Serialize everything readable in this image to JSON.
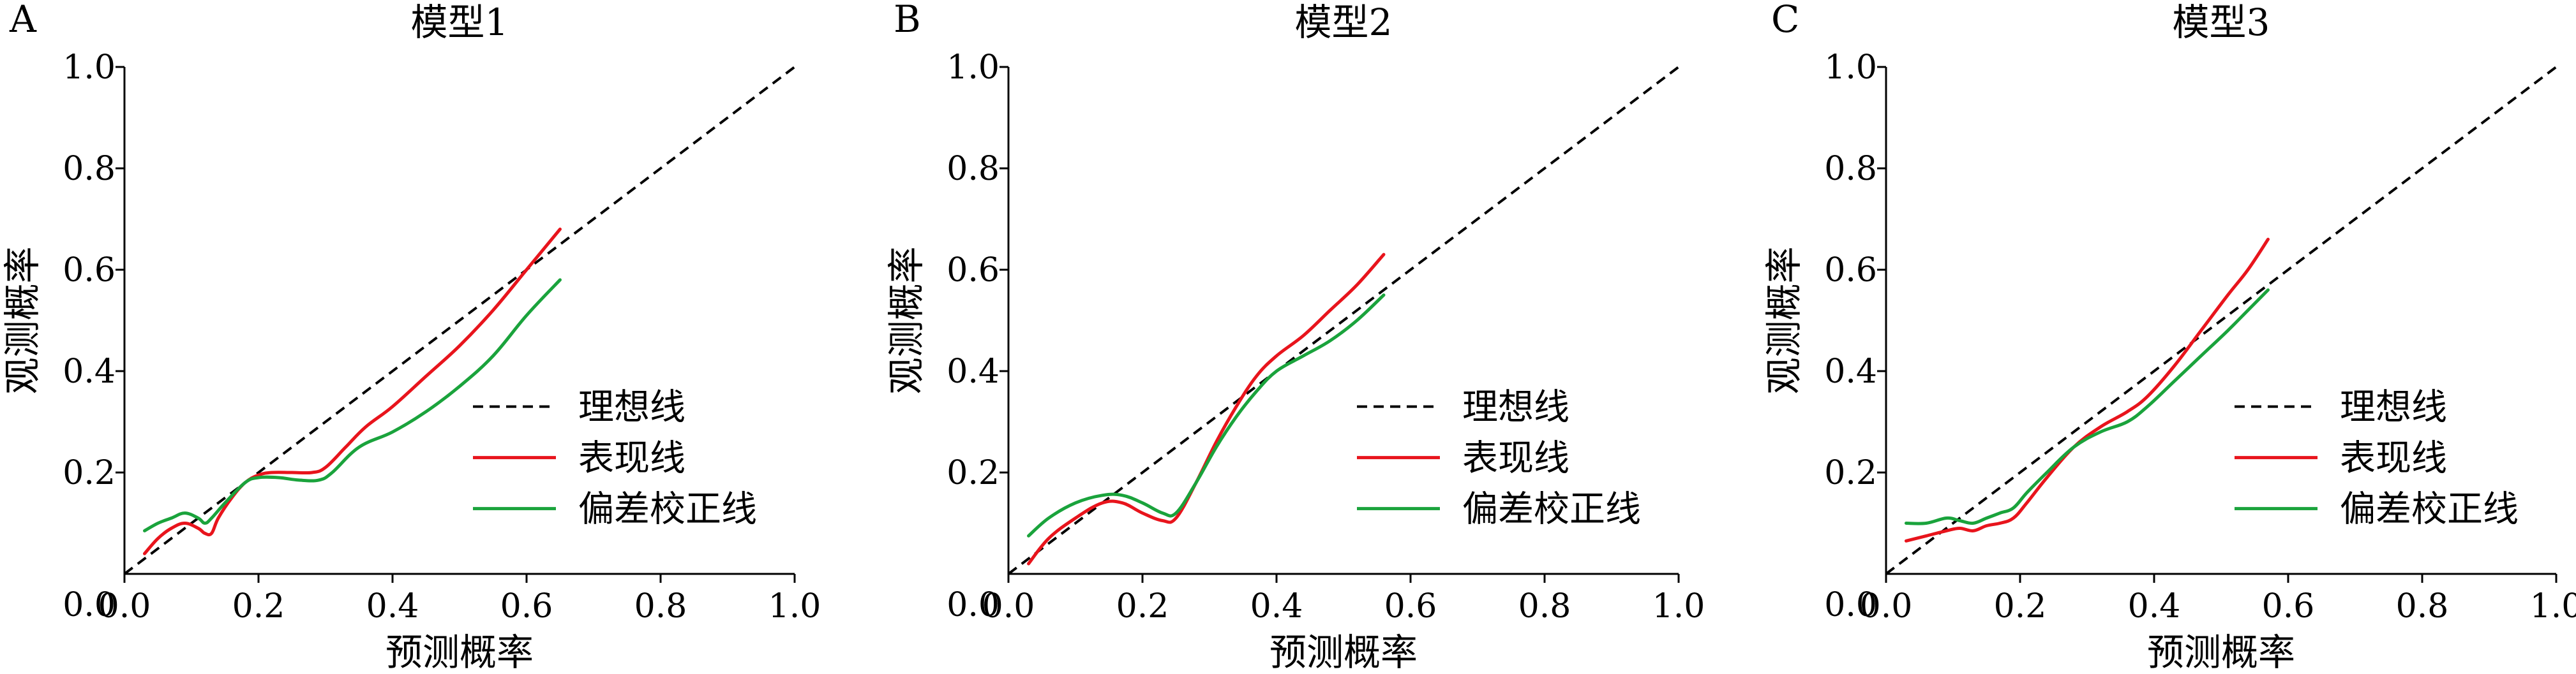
{
  "chart_data": [
    {
      "type": "line",
      "panel_label": "A",
      "title": "模型1",
      "xlabel": "预测概率",
      "ylabel": "观测概率",
      "xlim": [
        0.0,
        1.0
      ],
      "ylim": [
        0.0,
        1.0
      ],
      "xticks": [
        "0.0",
        "0.2",
        "0.4",
        "0.6",
        "0.8",
        "1.0"
      ],
      "yticks": [
        "0.0",
        "0.2",
        "0.4",
        "0.6",
        "0.8",
        "1.0"
      ],
      "grid": false,
      "legend_position": "lower-right",
      "series": [
        {
          "name": "理想线",
          "color": "#000000",
          "style": "dashed",
          "x": [
            0,
            1
          ],
          "y": [
            0,
            1
          ]
        },
        {
          "name": "表现线",
          "color": "#e8141c",
          "style": "solid",
          "x": [
            0.03,
            0.05,
            0.07,
            0.09,
            0.11,
            0.12,
            0.13,
            0.14,
            0.16,
            0.18,
            0.2,
            0.22,
            0.25,
            0.28,
            0.3,
            0.33,
            0.36,
            0.4,
            0.45,
            0.5,
            0.55,
            0.6,
            0.65
          ],
          "y": [
            0.04,
            0.07,
            0.09,
            0.1,
            0.09,
            0.08,
            0.08,
            0.11,
            0.15,
            0.18,
            0.195,
            0.2,
            0.2,
            0.2,
            0.21,
            0.25,
            0.29,
            0.33,
            0.39,
            0.45,
            0.52,
            0.6,
            0.68
          ]
        },
        {
          "name": "偏差校正线",
          "color": "#1aa33c",
          "style": "solid",
          "x": [
            0.03,
            0.05,
            0.07,
            0.09,
            0.11,
            0.12,
            0.13,
            0.15,
            0.18,
            0.2,
            0.23,
            0.26,
            0.29,
            0.31,
            0.35,
            0.4,
            0.45,
            0.5,
            0.55,
            0.6,
            0.65
          ],
          "y": [
            0.085,
            0.1,
            0.11,
            0.12,
            0.11,
            0.1,
            0.11,
            0.14,
            0.18,
            0.19,
            0.19,
            0.185,
            0.185,
            0.2,
            0.25,
            0.28,
            0.32,
            0.37,
            0.43,
            0.51,
            0.58
          ]
        }
      ]
    },
    {
      "type": "line",
      "panel_label": "B",
      "title": "模型2",
      "xlabel": "预测概率",
      "ylabel": "观测概率",
      "xlim": [
        0.0,
        1.0
      ],
      "ylim": [
        0.0,
        1.0
      ],
      "xticks": [
        "0.0",
        "0.2",
        "0.4",
        "0.6",
        "0.8",
        "1.0"
      ],
      "yticks": [
        "0.0",
        "0.2",
        "0.4",
        "0.6",
        "0.8",
        "1.0"
      ],
      "grid": false,
      "legend_position": "lower-right",
      "series": [
        {
          "name": "理想线",
          "color": "#000000",
          "style": "dashed",
          "x": [
            0,
            1
          ],
          "y": [
            0,
            1
          ]
        },
        {
          "name": "表现线",
          "color": "#e8141c",
          "style": "solid",
          "x": [
            0.03,
            0.06,
            0.1,
            0.14,
            0.17,
            0.2,
            0.23,
            0.25,
            0.28,
            0.31,
            0.34,
            0.37,
            0.4,
            0.44,
            0.48,
            0.52,
            0.56
          ],
          "y": [
            0.02,
            0.07,
            0.11,
            0.14,
            0.14,
            0.12,
            0.105,
            0.11,
            0.18,
            0.26,
            0.33,
            0.39,
            0.43,
            0.47,
            0.52,
            0.57,
            0.63
          ]
        },
        {
          "name": "偏差校正线",
          "color": "#1aa33c",
          "style": "solid",
          "x": [
            0.03,
            0.06,
            0.1,
            0.14,
            0.17,
            0.2,
            0.23,
            0.25,
            0.28,
            0.31,
            0.34,
            0.37,
            0.4,
            0.44,
            0.48,
            0.52,
            0.56
          ],
          "y": [
            0.075,
            0.11,
            0.14,
            0.155,
            0.155,
            0.14,
            0.12,
            0.12,
            0.18,
            0.25,
            0.31,
            0.36,
            0.4,
            0.43,
            0.46,
            0.5,
            0.55
          ]
        }
      ]
    },
    {
      "type": "line",
      "panel_label": "C",
      "title": "模型3",
      "xlabel": "预测概率",
      "ylabel": "观测概率",
      "xlim": [
        0.0,
        1.0
      ],
      "ylim": [
        0.0,
        1.0
      ],
      "xticks": [
        "0.0",
        "0.2",
        "0.4",
        "0.6",
        "0.8",
        "1.0"
      ],
      "yticks": [
        "0.0",
        "0.2",
        "0.4",
        "0.6",
        "0.8",
        "1.0"
      ],
      "grid": false,
      "legend_position": "lower-right",
      "series": [
        {
          "name": "理想线",
          "color": "#000000",
          "style": "dashed",
          "x": [
            0,
            1
          ],
          "y": [
            0,
            1
          ]
        },
        {
          "name": "表现线",
          "color": "#e8141c",
          "style": "solid",
          "x": [
            0.03,
            0.06,
            0.09,
            0.11,
            0.13,
            0.15,
            0.17,
            0.19,
            0.21,
            0.24,
            0.28,
            0.32,
            0.36,
            0.39,
            0.43,
            0.47,
            0.51,
            0.54,
            0.57
          ],
          "y": [
            0.065,
            0.075,
            0.085,
            0.09,
            0.085,
            0.095,
            0.1,
            0.11,
            0.14,
            0.19,
            0.25,
            0.29,
            0.32,
            0.35,
            0.41,
            0.48,
            0.55,
            0.6,
            0.66
          ]
        },
        {
          "name": "偏差校正线",
          "color": "#1aa33c",
          "style": "solid",
          "x": [
            0.03,
            0.06,
            0.09,
            0.11,
            0.13,
            0.15,
            0.17,
            0.19,
            0.21,
            0.24,
            0.28,
            0.32,
            0.36,
            0.39,
            0.43,
            0.47,
            0.51,
            0.54,
            0.57
          ],
          "y": [
            0.1,
            0.1,
            0.11,
            0.105,
            0.1,
            0.11,
            0.12,
            0.13,
            0.16,
            0.2,
            0.25,
            0.28,
            0.3,
            0.33,
            0.38,
            0.43,
            0.48,
            0.52,
            0.56
          ]
        }
      ]
    }
  ]
}
